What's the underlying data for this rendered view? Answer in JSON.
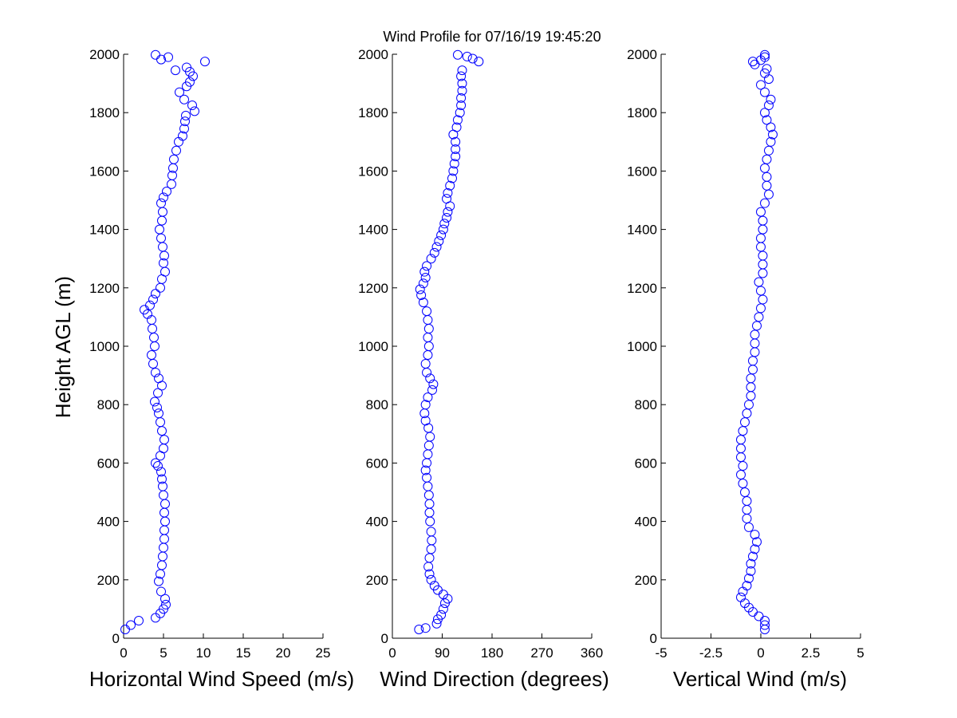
{
  "title": "Wind Profile for  07/16/19 19:45:20",
  "marker_color": "#0000ff",
  "axis_color": "#000000",
  "chart_data": [
    {
      "type": "scatter",
      "name": "horizontal-wind-speed",
      "xlabel": "Horizontal Wind Speed (m/s)",
      "ylabel": "Height AGL (m)",
      "xlim": [
        0,
        25
      ],
      "ylim": [
        0,
        2000
      ],
      "xticks": [
        0,
        5,
        10,
        15,
        20,
        25
      ],
      "xtick_labels": [
        "0",
        "5",
        "10",
        "15",
        "20",
        "25"
      ],
      "yticks": [
        0,
        200,
        400,
        600,
        800,
        1000,
        1200,
        1400,
        1600,
        1800,
        2000
      ],
      "ytick_labels": [
        "0",
        "200",
        "400",
        "600",
        "800",
        "1000",
        "1200",
        "1400",
        "1600",
        "1800",
        "2000"
      ],
      "points": [
        [
          0.2,
          30
        ],
        [
          0.9,
          45
        ],
        [
          1.9,
          60
        ],
        [
          4.0,
          70
        ],
        [
          4.6,
          85
        ],
        [
          5.0,
          100
        ],
        [
          5.3,
          115
        ],
        [
          5.2,
          135
        ],
        [
          4.7,
          160
        ],
        [
          4.4,
          195
        ],
        [
          4.6,
          220
        ],
        [
          4.8,
          250
        ],
        [
          4.9,
          280
        ],
        [
          5.0,
          310
        ],
        [
          5.1,
          340
        ],
        [
          5.1,
          370
        ],
        [
          5.2,
          400
        ],
        [
          5.1,
          430
        ],
        [
          5.2,
          460
        ],
        [
          5.0,
          490
        ],
        [
          4.9,
          520
        ],
        [
          4.8,
          545
        ],
        [
          4.7,
          570
        ],
        [
          4.3,
          590
        ],
        [
          4.0,
          600
        ],
        [
          4.6,
          625
        ],
        [
          5.0,
          650
        ],
        [
          5.1,
          680
        ],
        [
          4.8,
          710
        ],
        [
          4.6,
          740
        ],
        [
          4.4,
          770
        ],
        [
          4.2,
          790
        ],
        [
          3.9,
          810
        ],
        [
          4.3,
          840
        ],
        [
          4.8,
          865
        ],
        [
          4.4,
          890
        ],
        [
          4.0,
          910
        ],
        [
          3.7,
          940
        ],
        [
          3.5,
          970
        ],
        [
          3.9,
          1000
        ],
        [
          3.8,
          1030
        ],
        [
          3.6,
          1060
        ],
        [
          3.5,
          1090
        ],
        [
          3.0,
          1110
        ],
        [
          2.6,
          1125
        ],
        [
          3.3,
          1140
        ],
        [
          3.7,
          1160
        ],
        [
          4.0,
          1180
        ],
        [
          4.6,
          1200
        ],
        [
          4.8,
          1230
        ],
        [
          5.2,
          1255
        ],
        [
          5.0,
          1285
        ],
        [
          5.1,
          1310
        ],
        [
          4.9,
          1340
        ],
        [
          4.7,
          1370
        ],
        [
          4.5,
          1400
        ],
        [
          4.8,
          1430
        ],
        [
          4.9,
          1460
        ],
        [
          4.7,
          1490
        ],
        [
          5.0,
          1510
        ],
        [
          5.4,
          1530
        ],
        [
          6.0,
          1555
        ],
        [
          6.1,
          1585
        ],
        [
          6.2,
          1610
        ],
        [
          6.3,
          1640
        ],
        [
          6.6,
          1670
        ],
        [
          6.9,
          1700
        ],
        [
          7.4,
          1720
        ],
        [
          7.6,
          1745
        ],
        [
          7.7,
          1770
        ],
        [
          7.8,
          1790
        ],
        [
          8.9,
          1805
        ],
        [
          8.6,
          1825
        ],
        [
          7.6,
          1845
        ],
        [
          7.0,
          1870
        ],
        [
          7.9,
          1890
        ],
        [
          8.3,
          1905
        ],
        [
          8.7,
          1925
        ],
        [
          8.3,
          1940
        ],
        [
          6.5,
          1945
        ],
        [
          7.9,
          1955
        ],
        [
          10.2,
          1975
        ],
        [
          4.7,
          1982
        ],
        [
          5.6,
          1990
        ],
        [
          4.0,
          1998
        ]
      ]
    },
    {
      "type": "scatter",
      "name": "wind-direction",
      "xlabel": "Wind Direction (degrees)",
      "xlim": [
        0,
        360
      ],
      "ylim": [
        0,
        2000
      ],
      "xticks": [
        0,
        90,
        180,
        270,
        360
      ],
      "xtick_labels": [
        "0",
        "90",
        "180",
        "270",
        "360"
      ],
      "yticks": [
        0,
        200,
        400,
        600,
        800,
        1000,
        1200,
        1400,
        1600,
        1800,
        2000
      ],
      "ytick_labels": [
        "0",
        "200",
        "400",
        "600",
        "800",
        "1000",
        "1200",
        "1400",
        "1600",
        "1800",
        "2000"
      ],
      "points": [
        [
          48,
          30
        ],
        [
          60,
          35
        ],
        [
          80,
          50
        ],
        [
          82,
          65
        ],
        [
          88,
          80
        ],
        [
          92,
          100
        ],
        [
          95,
          120
        ],
        [
          100,
          135
        ],
        [
          92,
          150
        ],
        [
          82,
          165
        ],
        [
          76,
          180
        ],
        [
          70,
          200
        ],
        [
          67,
          220
        ],
        [
          65,
          245
        ],
        [
          67,
          275
        ],
        [
          70,
          305
        ],
        [
          71,
          335
        ],
        [
          70,
          365
        ],
        [
          68,
          400
        ],
        [
          67,
          430
        ],
        [
          67,
          460
        ],
        [
          66,
          490
        ],
        [
          64,
          520
        ],
        [
          62,
          550
        ],
        [
          60,
          575
        ],
        [
          62,
          600
        ],
        [
          64,
          630
        ],
        [
          66,
          660
        ],
        [
          68,
          690
        ],
        [
          65,
          720
        ],
        [
          60,
          745
        ],
        [
          58,
          770
        ],
        [
          60,
          800
        ],
        [
          64,
          825
        ],
        [
          72,
          850
        ],
        [
          74,
          870
        ],
        [
          68,
          890
        ],
        [
          62,
          910
        ],
        [
          60,
          940
        ],
        [
          64,
          970
        ],
        [
          66,
          1000
        ],
        [
          64,
          1030
        ],
        [
          66,
          1060
        ],
        [
          64,
          1090
        ],
        [
          62,
          1120
        ],
        [
          56,
          1150
        ],
        [
          52,
          1175
        ],
        [
          50,
          1195
        ],
        [
          56,
          1215
        ],
        [
          60,
          1235
        ],
        [
          58,
          1255
        ],
        [
          62,
          1275
        ],
        [
          70,
          1300
        ],
        [
          76,
          1320
        ],
        [
          80,
          1340
        ],
        [
          84,
          1360
        ],
        [
          88,
          1380
        ],
        [
          92,
          1400
        ],
        [
          94,
          1420
        ],
        [
          98,
          1440
        ],
        [
          100,
          1460
        ],
        [
          104,
          1480
        ],
        [
          98,
          1505
        ],
        [
          100,
          1525
        ],
        [
          104,
          1550
        ],
        [
          108,
          1575
        ],
        [
          110,
          1600
        ],
        [
          112,
          1625
        ],
        [
          114,
          1650
        ],
        [
          114,
          1675
        ],
        [
          114,
          1700
        ],
        [
          110,
          1725
        ],
        [
          116,
          1750
        ],
        [
          118,
          1775
        ],
        [
          122,
          1800
        ],
        [
          124,
          1825
        ],
        [
          124,
          1850
        ],
        [
          126,
          1875
        ],
        [
          126,
          1900
        ],
        [
          124,
          1925
        ],
        [
          126,
          1945
        ],
        [
          156,
          1975
        ],
        [
          145,
          1985
        ],
        [
          135,
          1992
        ],
        [
          118,
          1998
        ]
      ]
    },
    {
      "type": "scatter",
      "name": "vertical-wind",
      "xlabel": "Vertical Wind (m/s)",
      "xlim": [
        -5,
        5
      ],
      "ylim": [
        0,
        2000
      ],
      "xticks": [
        -5,
        -2.5,
        0,
        2.5,
        5
      ],
      "xtick_labels": [
        "-5",
        "-2.5",
        "0",
        "2.5",
        "5"
      ],
      "yticks": [
        0,
        200,
        400,
        600,
        800,
        1000,
        1200,
        1400,
        1600,
        1800,
        2000
      ],
      "ytick_labels": [
        "0",
        "200",
        "400",
        "600",
        "800",
        "1000",
        "1200",
        "1400",
        "1600",
        "1800",
        "2000"
      ],
      "points": [
        [
          0.2,
          30
        ],
        [
          0.2,
          45
        ],
        [
          0.2,
          60
        ],
        [
          -0.1,
          75
        ],
        [
          -0.4,
          90
        ],
        [
          -0.6,
          105
        ],
        [
          -0.8,
          120
        ],
        [
          -1.0,
          140
        ],
        [
          -0.9,
          160
        ],
        [
          -0.7,
          180
        ],
        [
          -0.6,
          205
        ],
        [
          -0.5,
          230
        ],
        [
          -0.5,
          255
        ],
        [
          -0.4,
          280
        ],
        [
          -0.3,
          305
        ],
        [
          -0.2,
          330
        ],
        [
          -0.3,
          355
        ],
        [
          -0.6,
          380
        ],
        [
          -0.7,
          410
        ],
        [
          -0.7,
          440
        ],
        [
          -0.7,
          470
        ],
        [
          -0.8,
          500
        ],
        [
          -0.9,
          530
        ],
        [
          -1.0,
          560
        ],
        [
          -0.9,
          590
        ],
        [
          -1.0,
          620
        ],
        [
          -1.0,
          650
        ],
        [
          -1.0,
          680
        ],
        [
          -0.9,
          710
        ],
        [
          -0.8,
          740
        ],
        [
          -0.7,
          770
        ],
        [
          -0.6,
          800
        ],
        [
          -0.5,
          830
        ],
        [
          -0.5,
          860
        ],
        [
          -0.5,
          890
        ],
        [
          -0.4,
          920
        ],
        [
          -0.4,
          950
        ],
        [
          -0.3,
          980
        ],
        [
          -0.3,
          1010
        ],
        [
          -0.3,
          1040
        ],
        [
          -0.2,
          1070
        ],
        [
          -0.1,
          1100
        ],
        [
          0.0,
          1130
        ],
        [
          0.1,
          1160
        ],
        [
          0.0,
          1190
        ],
        [
          -0.1,
          1220
        ],
        [
          0.1,
          1250
        ],
        [
          0.1,
          1280
        ],
        [
          0.1,
          1310
        ],
        [
          0.0,
          1340
        ],
        [
          0.0,
          1370
        ],
        [
          0.1,
          1400
        ],
        [
          0.1,
          1430
        ],
        [
          0.0,
          1460
        ],
        [
          0.2,
          1490
        ],
        [
          0.4,
          1520
        ],
        [
          0.3,
          1550
        ],
        [
          0.3,
          1580
        ],
        [
          0.2,
          1610
        ],
        [
          0.3,
          1640
        ],
        [
          0.4,
          1670
        ],
        [
          0.5,
          1700
        ],
        [
          0.6,
          1725
        ],
        [
          0.5,
          1750
        ],
        [
          0.3,
          1775
        ],
        [
          0.2,
          1800
        ],
        [
          0.4,
          1825
        ],
        [
          0.5,
          1845
        ],
        [
          0.2,
          1870
        ],
        [
          0.0,
          1895
        ],
        [
          0.4,
          1915
        ],
        [
          0.2,
          1935
        ],
        [
          0.3,
          1950
        ],
        [
          -0.3,
          1965
        ],
        [
          -0.4,
          1975
        ],
        [
          0.0,
          1980
        ],
        [
          0.2,
          1990
        ],
        [
          0.2,
          1998
        ]
      ]
    }
  ]
}
